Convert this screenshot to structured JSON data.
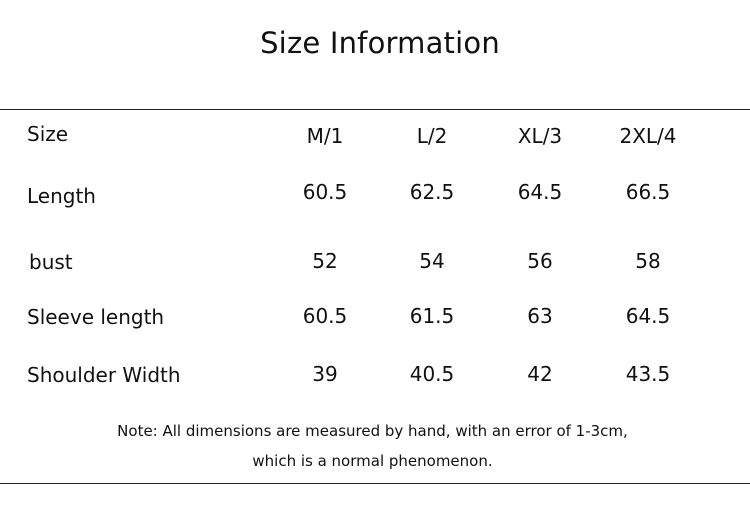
{
  "header": {
    "title": "Size Information"
  },
  "table": {
    "columns": [
      "Size",
      "M/1",
      "L/2",
      "XL/3",
      "2XL/4"
    ],
    "rows": [
      [
        "Length",
        60.5,
        62.5,
        64.5,
        66.5
      ],
      [
        "bust",
        52,
        54,
        56,
        58
      ],
      [
        "Sleeve length",
        60.5,
        61.5,
        63,
        64.5
      ],
      [
        "Shoulder Width",
        39,
        40.5,
        42,
        43.5
      ]
    ]
  },
  "note": [
    "Note: All dimensions are measured by hand, with an error of 1-3cm,",
    "which is a normal phenomenon."
  ]
}
